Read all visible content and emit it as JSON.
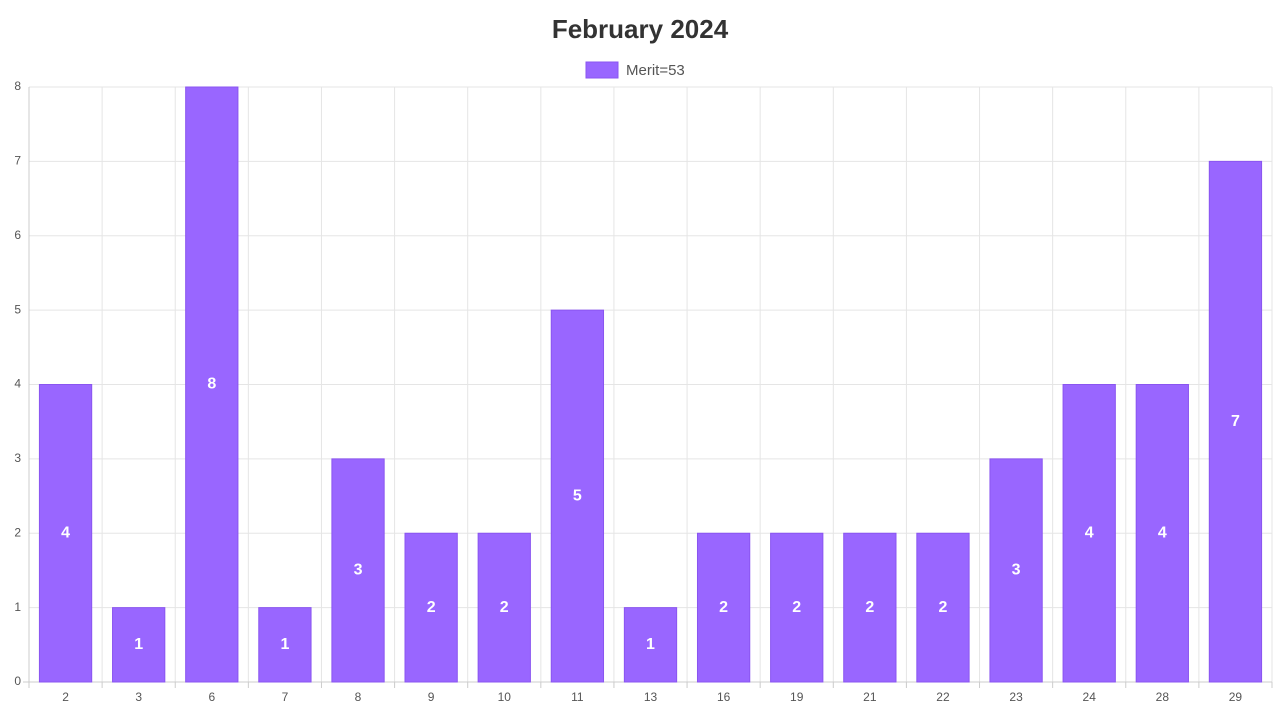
{
  "chart_data": {
    "type": "bar",
    "title": "February 2024",
    "categories": [
      "2",
      "3",
      "6",
      "7",
      "8",
      "9",
      "10",
      "11",
      "13",
      "16",
      "19",
      "21",
      "22",
      "23",
      "24",
      "28",
      "29"
    ],
    "series": [
      {
        "name": "Merit=53",
        "color": "#9966ff",
        "values": [
          4,
          1,
          8,
          1,
          3,
          2,
          2,
          5,
          1,
          2,
          2,
          2,
          2,
          3,
          4,
          4,
          7
        ]
      }
    ],
    "ylim": [
      0,
      8
    ],
    "yticks": [
      0,
      1,
      2,
      3,
      4,
      5,
      6,
      7,
      8
    ],
    "grid": true,
    "legend": "top"
  }
}
